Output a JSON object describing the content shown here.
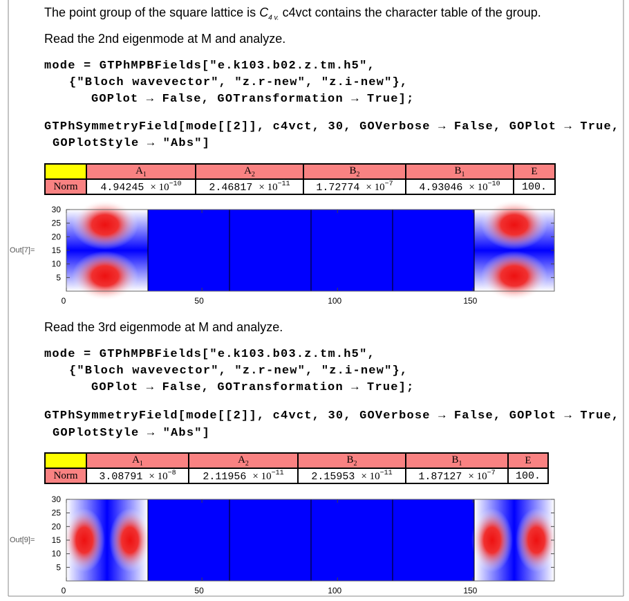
{
  "intro": {
    "text": "The point group of the square lattice is ",
    "symbol": "C",
    "subscript": "4 v.",
    "rest": " c4vct contains the character table of the group."
  },
  "sections": [
    {
      "prompt": "Read the 2nd eigenmode at M and analyze.",
      "code": [
        "mode = GTPhMPBFields[\"e.k103.b02.z.tm.h5\",",
        "{\"Bloch wavevector\", \"z.r-new\", \"z.i-new\"},",
        "GOPlot → False, GOTransformation → True];",
        "GTPhSymmetryField[mode[[2]], c4vct, 30, GOVerbose → False, GOPlot → True,",
        "GOPlotStyle → \"Abs\"]"
      ],
      "table": {
        "headers": [
          {
            "letter": "A",
            "sub": "1"
          },
          {
            "letter": "A",
            "sub": "2"
          },
          {
            "letter": "B",
            "sub": "2"
          },
          {
            "letter": "B",
            "sub": "1"
          },
          {
            "letter": "E"
          }
        ],
        "row_label": "Norm",
        "values": [
          {
            "mantissa": "4.94245",
            "base": "× 10",
            "exponent": "−10"
          },
          {
            "mantissa": "2.46817",
            "base": "× 10",
            "exponent": "−11"
          },
          {
            "mantissa": "1.72774",
            "base": "× 10",
            "exponent": "−7"
          },
          {
            "mantissa": "4.93046",
            "base": "× 10",
            "exponent": "−10"
          },
          {
            "mantissa": "100."
          }
        ]
      },
      "plot": {
        "out_label": "Out[7]=",
        "xlim": [
          0,
          180
        ],
        "ylim": [
          0,
          30
        ],
        "xticks": [
          0,
          50,
          100,
          150
        ],
        "yticks": [
          5,
          10,
          15,
          20,
          25,
          30
        ]
      }
    },
    {
      "prompt": "Read the 3rd eigenmode at M and analyze.",
      "code": [
        "mode = GTPhMPBFields[\"e.k103.b03.z.tm.h5\",",
        "{\"Bloch wavevector\", \"z.r-new\", \"z.i-new\"},",
        "GOPlot → False, GOTransformation → True];",
        "GTPhSymmetryField[mode[[2]], c4vct, 30, GOVerbose → False, GOPlot → True,",
        "GOPlotStyle → \"Abs\"]"
      ],
      "table": {
        "headers": [
          {
            "letter": "A",
            "sub": "1"
          },
          {
            "letter": "A",
            "sub": "2"
          },
          {
            "letter": "B",
            "sub": "2"
          },
          {
            "letter": "B",
            "sub": "1"
          },
          {
            "letter": "E"
          }
        ],
        "row_label": "Norm",
        "values": [
          {
            "mantissa": "3.08791",
            "base": "× 10",
            "exponent": "−8"
          },
          {
            "mantissa": "2.11956",
            "base": "× 10",
            "exponent": "−11"
          },
          {
            "mantissa": "2.15953",
            "base": "× 10",
            "exponent": "−11"
          },
          {
            "mantissa": "1.87127",
            "base": "× 10",
            "exponent": "−7"
          },
          {
            "mantissa": "100."
          }
        ]
      },
      "plot": {
        "out_label": "Out[9]=",
        "xlim": [
          0,
          180
        ],
        "ylim": [
          0,
          30
        ],
        "xticks": [
          0,
          50,
          100,
          150
        ],
        "yticks": [
          5,
          10,
          15,
          20,
          25,
          30
        ]
      }
    }
  ]
}
